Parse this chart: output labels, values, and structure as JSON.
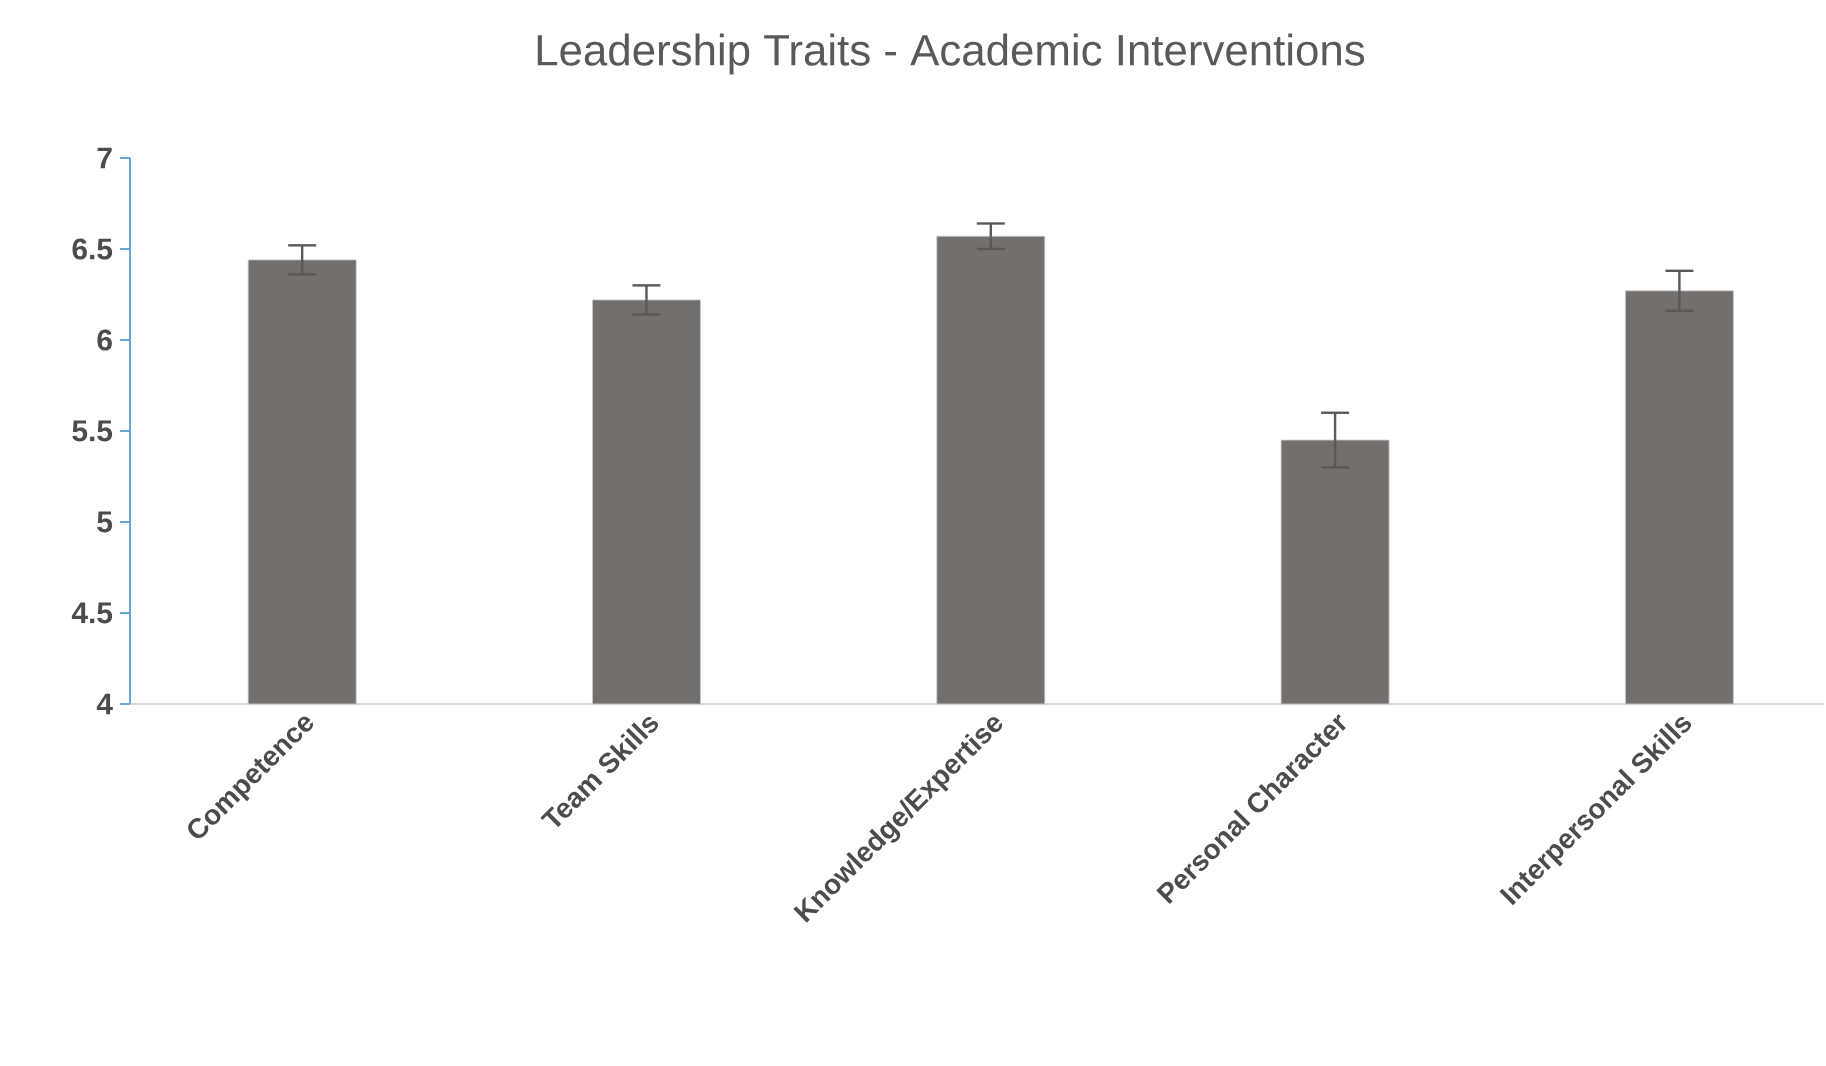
{
  "chart_data": {
    "type": "bar",
    "title": "Leadership Traits - Academic Interventions",
    "categories": [
      "Competence",
      "Team Skills",
      "Knowledge/Expertise",
      "Personal Character",
      "Interpersonal Skills"
    ],
    "values": [
      6.44,
      6.22,
      6.57,
      5.45,
      6.27
    ],
    "errors": [
      0.08,
      0.08,
      0.07,
      0.15,
      0.11
    ],
    "color": "#736f6d",
    "ylim": [
      4,
      7
    ],
    "yticks": [
      4,
      4.5,
      5,
      5.5,
      6,
      6.5,
      7
    ]
  }
}
